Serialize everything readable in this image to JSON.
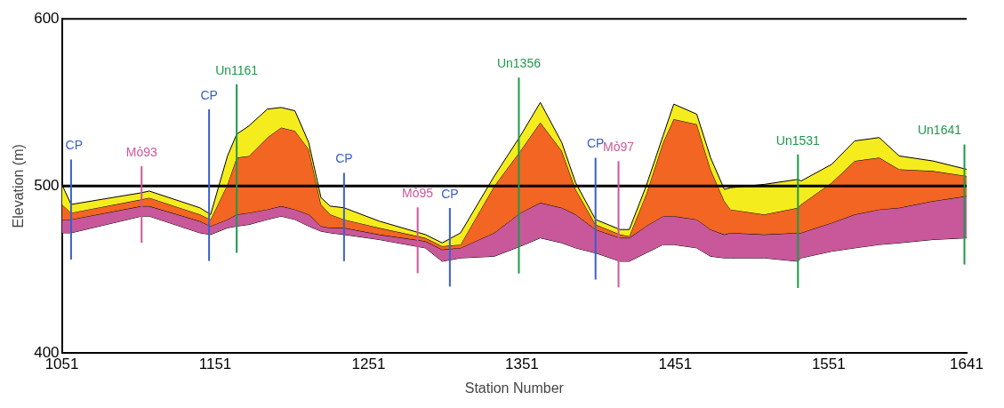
{
  "chart_data": {
    "type": "area",
    "xlabel": "Station Number",
    "ylabel": "Elevation (m)",
    "x": [
      1051,
      1057,
      1103,
      1108,
      1141,
      1148,
      1159,
      1165,
      1173,
      1185,
      1194,
      1203,
      1212,
      1220,
      1226,
      1235,
      1258,
      1288,
      1299,
      1311,
      1333,
      1350,
      1363,
      1377,
      1386,
      1399,
      1415,
      1421,
      1432,
      1443,
      1450,
      1465,
      1474,
      1483,
      1487,
      1509,
      1531,
      1533,
      1553,
      1568,
      1584,
      1597,
      1619,
      1641
    ],
    "series": [
      {
        "type": "line",
        "color": "#000000",
        "values": [
          472,
          472,
          482,
          482,
          472,
          471,
          475,
          476,
          477,
          480,
          482,
          480,
          476,
          473,
          472,
          471,
          468,
          463,
          455,
          457,
          458,
          464,
          469,
          466,
          463,
          460,
          455,
          455,
          460,
          465,
          465,
          463,
          458,
          457,
          457,
          457,
          455,
          457,
          461,
          463,
          465,
          466,
          468,
          469
        ]
      },
      {
        "color": "#c8589a",
        "values": [
          480,
          480,
          488,
          488,
          479,
          476,
          480,
          483,
          484,
          486,
          488,
          486,
          483,
          476,
          475,
          475,
          471,
          467,
          462,
          463,
          472,
          484,
          490,
          487,
          483,
          474,
          469,
          469,
          476,
          482,
          482,
          480,
          474,
          471,
          472,
          471,
          472,
          472,
          478,
          483,
          486,
          487,
          491,
          494
        ]
      },
      {
        "color": "#f26522",
        "values": [
          489,
          484,
          492,
          493,
          483,
          480,
          501,
          517,
          518,
          529,
          535,
          533,
          522,
          489,
          483,
          480,
          475,
          469,
          464,
          465,
          500,
          521,
          538,
          521,
          498,
          477,
          471,
          470,
          495,
          526,
          540,
          537,
          510,
          491,
          486,
          483,
          487,
          489,
          502,
          515,
          517,
          510,
          509,
          506
        ]
      },
      {
        "color": "#f5ec1e",
        "values": [
          501,
          489,
          496,
          497,
          487,
          483,
          518,
          531,
          536,
          546,
          547,
          545,
          526,
          493,
          488,
          487,
          479,
          471,
          466,
          472,
          506,
          530,
          550,
          526,
          502,
          480,
          474,
          474,
          500,
          530,
          549,
          543,
          517,
          498,
          499,
          501,
          504,
          503,
          513,
          527,
          529,
          518,
          515,
          510
        ]
      }
    ],
    "xlim": [
      1051,
      1641
    ],
    "xticks": [
      1051,
      1151,
      1251,
      1351,
      1451,
      1551,
      1641
    ],
    "ylim": [
      400,
      600
    ],
    "yticks": [
      400,
      500,
      600
    ],
    "grid": false,
    "legend": false,
    "marker": "none",
    "ref_lines": [
      {
        "axis": "y",
        "value": 500,
        "color": "#000000"
      },
      {
        "axis": "x",
        "value": 1057,
        "label": "CP",
        "color": "#3a5fc8"
      },
      {
        "axis": "x",
        "value": 1103,
        "label": "Mỏ93",
        "color": "#d0569a"
      },
      {
        "axis": "x",
        "value": 1147,
        "label": "CP",
        "color": "#3a5fc8"
      },
      {
        "axis": "x",
        "value": 1165,
        "label": "Un1161",
        "color": "#1a9a4a"
      },
      {
        "axis": "x",
        "value": 1235,
        "label": "CP",
        "color": "#3a5fc8"
      },
      {
        "axis": "x",
        "value": 1283,
        "label": "Mỏ95",
        "color": "#d0569a"
      },
      {
        "axis": "x",
        "value": 1304,
        "label": "CP",
        "color": "#3a5fc8"
      },
      {
        "axis": "x",
        "value": 1349,
        "label": "Un1356",
        "color": "#1a9a4a"
      },
      {
        "axis": "x",
        "value": 1399,
        "label": "CP",
        "color": "#3a5fc8"
      },
      {
        "axis": "x",
        "value": 1414,
        "label": "Mỏ97",
        "color": "#d0569a"
      },
      {
        "axis": "x",
        "value": 1531,
        "label": "Un1531",
        "color": "#1a9a4a"
      },
      {
        "axis": "x",
        "value": 1641,
        "label": "Un1641",
        "color": "#1a9a4a"
      }
    ]
  }
}
